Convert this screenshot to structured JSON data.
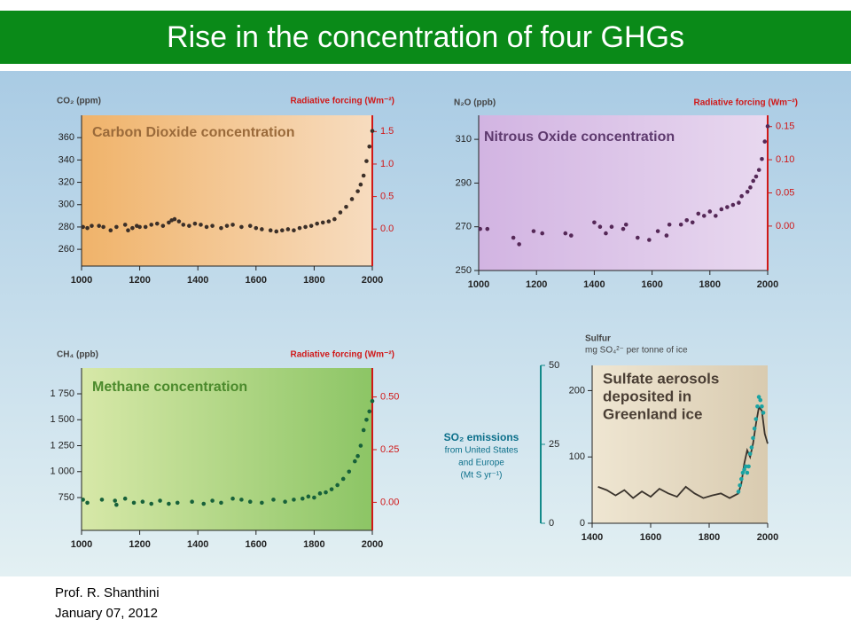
{
  "header": {
    "title": "Rise in the concentration of four GHGs"
  },
  "chart_data": [
    {
      "type": "scatter",
      "title": [
        "Carbon Dioxide concentration"
      ],
      "y_label": [
        "CO₂ (ppm)"
      ],
      "y2_label": [
        "Radiative forcing (Wm⁻²)"
      ],
      "color": "#3b2f28",
      "x": [
        1005,
        1020,
        1035,
        1060,
        1075,
        1100,
        1120,
        1150,
        1160,
        1175,
        1190,
        1200,
        1220,
        1240,
        1260,
        1280,
        1300,
        1310,
        1320,
        1335,
        1350,
        1370,
        1390,
        1410,
        1430,
        1450,
        1480,
        1500,
        1520,
        1550,
        1580,
        1600,
        1620,
        1650,
        1670,
        1690,
        1710,
        1730,
        1750,
        1770,
        1790,
        1810,
        1830,
        1850,
        1870,
        1890,
        1910,
        1930,
        1950,
        1960,
        1970,
        1980,
        1990,
        2000
      ],
      "values": [
        280,
        279,
        281,
        281,
        280,
        277,
        280,
        282,
        277,
        279,
        281,
        280,
        280,
        282,
        283,
        281,
        284,
        286,
        287,
        285,
        282,
        281,
        283,
        282,
        280,
        281,
        279,
        281,
        282,
        280,
        281,
        279,
        278,
        277,
        276,
        277,
        278,
        277,
        279,
        280,
        281,
        283,
        284,
        285,
        287,
        293,
        298,
        305,
        312,
        318,
        326,
        339,
        352,
        366
      ],
      "xlim": [
        1000,
        2000
      ],
      "xticks": [
        1000,
        1200,
        1400,
        1600,
        1800,
        2000
      ],
      "ylim": [
        245,
        380
      ],
      "yticks": [
        260,
        280,
        300,
        320,
        340,
        360
      ],
      "y2lim": [
        -0.57,
        1.75
      ],
      "y2ticks": [
        {
          "value": 0,
          "label": "0.0"
        },
        0.5,
        {
          "value": 1,
          "label": "1.0"
        },
        1.5
      ]
    },
    {
      "type": "scatter",
      "title": [
        "Nitrous Oxide concentration"
      ],
      "y_label": [
        "N₂O (ppb)"
      ],
      "y2_label": [
        "Radiative forcing (Wm⁻²)"
      ],
      "color": "#552857",
      "x": [
        1005,
        1030,
        1120,
        1140,
        1190,
        1220,
        1300,
        1320,
        1400,
        1420,
        1440,
        1460,
        1500,
        1510,
        1550,
        1590,
        1620,
        1650,
        1660,
        1700,
        1720,
        1740,
        1760,
        1780,
        1800,
        1820,
        1840,
        1860,
        1880,
        1900,
        1910,
        1930,
        1940,
        1950,
        1960,
        1970,
        1980,
        1990,
        2000
      ],
      "values": [
        269,
        269,
        265,
        262,
        268,
        267,
        267,
        266,
        272,
        270,
        267,
        270,
        269,
        271,
        265,
        264,
        268,
        266,
        271,
        271,
        273,
        272,
        276,
        275,
        277,
        275,
        278,
        279,
        280,
        281,
        284,
        286,
        288,
        291,
        293,
        296,
        301,
        309,
        316
      ],
      "xlim": [
        1000,
        2000
      ],
      "xticks": [
        1000,
        1200,
        1400,
        1600,
        1800,
        2000
      ],
      "ylim": [
        250,
        321
      ],
      "yticks": [
        250,
        270,
        290,
        310
      ],
      "y2lim": [
        -0.067,
        0.167
      ],
      "y2ticks": [
        {
          "value": 0,
          "label": "0.00"
        },
        0.05,
        {
          "value": 0.1,
          "label": "0.10"
        },
        0.15
      ]
    },
    {
      "type": "scatter",
      "title": [
        "Methane concentration"
      ],
      "y_label": [
        "CH₄ (ppb)"
      ],
      "y2_label": [
        "Radiative forcing (Wm⁻²)"
      ],
      "color": "#17613a",
      "x": [
        1005,
        1020,
        1070,
        1115,
        1120,
        1150,
        1180,
        1210,
        1240,
        1270,
        1300,
        1330,
        1380,
        1420,
        1450,
        1480,
        1520,
        1550,
        1580,
        1620,
        1660,
        1700,
        1730,
        1760,
        1780,
        1800,
        1820,
        1840,
        1860,
        1880,
        1900,
        1920,
        1940,
        1950,
        1960,
        1970,
        1980,
        1990,
        2000
      ],
      "values": [
        730,
        700,
        730,
        720,
        680,
        740,
        700,
        710,
        690,
        720,
        690,
        700,
        710,
        690,
        720,
        700,
        740,
        730,
        710,
        700,
        730,
        710,
        730,
        740,
        760,
        750,
        790,
        800,
        830,
        870,
        930,
        1000,
        1100,
        1150,
        1250,
        1400,
        1500,
        1580,
        1680
      ],
      "xlim": [
        1000,
        2000
      ],
      "xticks": [
        1000,
        1200,
        1400,
        1600,
        1800,
        2000
      ],
      "ylim": [
        434,
        1998
      ],
      "yticks": [
        750,
        {
          "value": 1000,
          "label": "1 000"
        },
        {
          "value": 1250,
          "label": "1 250"
        },
        {
          "value": 1500,
          "label": "1 500"
        },
        {
          "value": 1750,
          "label": "1 750"
        }
      ],
      "y2lim": [
        -0.133,
        0.637
      ],
      "y2ticks": [
        {
          "value": 0,
          "label": "0.00"
        },
        0.25,
        {
          "value": 0.5,
          "label": "0.50"
        }
      ]
    },
    {
      "type": "line",
      "title": [
        "Sulfate aerosols",
        "deposited in",
        "Greenland ice"
      ],
      "y_label": [
        "Sulfur",
        "mg SO₄²⁻ per tonne of ice"
      ],
      "y2_label": [
        "SO₂ emissions",
        "from United States",
        "and Europe",
        "(Mt S yr⁻¹)"
      ],
      "series": [
        {
          "type": "line",
          "color": "#3a332c",
          "x": [
            1420,
            1450,
            1480,
            1510,
            1540,
            1570,
            1600,
            1630,
            1660,
            1690,
            1720,
            1750,
            1780,
            1810,
            1840,
            1870,
            1900,
            1910,
            1920,
            1930,
            1940,
            1950,
            1960,
            1970,
            1980,
            1990,
            2000
          ],
          "values": [
            55,
            50,
            42,
            50,
            38,
            48,
            40,
            52,
            45,
            40,
            55,
            45,
            38,
            42,
            45,
            38,
            45,
            60,
            90,
            110,
            100,
            120,
            150,
            175,
            170,
            135,
            120
          ]
        },
        {
          "type": "scatter",
          "axis": "y2",
          "color": "#1aa3a3",
          "x": [
            1900,
            1905,
            1910,
            1915,
            1920,
            1925,
            1930,
            1935,
            1940,
            1945,
            1950,
            1955,
            1960,
            1965,
            1970,
            1975,
            1980,
            1985
          ],
          "values": [
            10,
            12,
            14,
            16,
            17,
            18,
            16,
            18,
            22,
            24,
            27,
            30,
            33,
            37,
            40,
            39,
            37,
            35
          ]
        }
      ],
      "xlim": [
        1400,
        2000
      ],
      "xticks": [
        1400,
        1600,
        1800,
        2000
      ],
      "ylim": [
        0,
        238
      ],
      "yticks": [
        0,
        100,
        200
      ],
      "y2lim": [
        0,
        50
      ],
      "y2ticks": [
        0,
        25,
        50
      ]
    }
  ],
  "footer": {
    "author": "Prof. R. Shanthini",
    "date": "January 07, 2012"
  }
}
